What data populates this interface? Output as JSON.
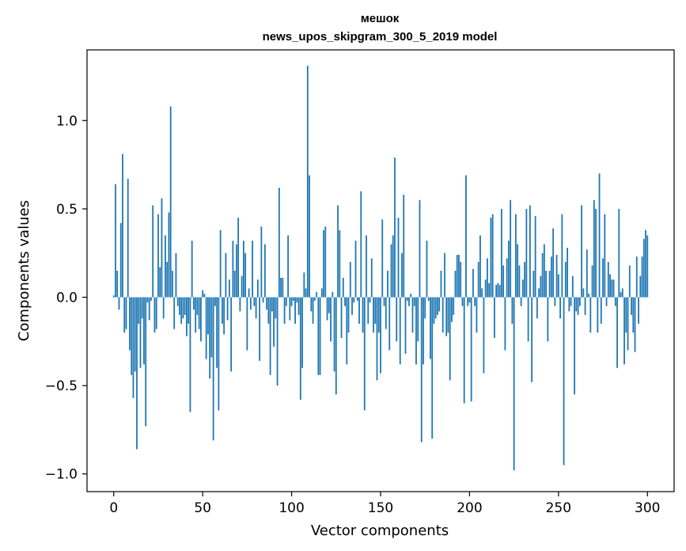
{
  "chart_data": {
    "type": "bar",
    "title": "мешок",
    "subtitle": "news_upos_skipgram_300_5_2019 model",
    "xlabel": "Vector components",
    "ylabel": "Components values",
    "xlim": [
      -15,
      315
    ],
    "ylim": [
      -1.1,
      1.4
    ],
    "xticks": [
      0,
      50,
      100,
      150,
      200,
      250,
      300
    ],
    "xtick_labels": [
      "0",
      "50",
      "100",
      "150",
      "200",
      "250",
      "300"
    ],
    "yticks": [
      -1.0,
      -0.5,
      0.0,
      0.5,
      1.0
    ],
    "ytick_labels": [
      "−1.0",
      "−0.5",
      "0.0",
      "0.5",
      "1.0"
    ],
    "bar_color": "#1f77b4",
    "grid": false,
    "values": [
      0.01,
      0.64,
      0.15,
      -0.07,
      0.42,
      0.81,
      -0.2,
      -0.18,
      0.67,
      -0.3,
      -0.44,
      -0.57,
      -0.42,
      -0.86,
      -0.15,
      -0.4,
      -0.12,
      -0.38,
      -0.73,
      -0.03,
      -0.13,
      -0.02,
      0.52,
      -0.2,
      -0.18,
      0.47,
      0.17,
      0.56,
      -0.12,
      0.35,
      0.2,
      0.48,
      1.08,
      0.15,
      -0.18,
      0.25,
      -0.05,
      -0.1,
      -0.15,
      -0.12,
      -0.1,
      -0.22,
      -0.15,
      -0.65,
      0.32,
      -0.07,
      -0.2,
      -0.1,
      -0.18,
      -0.25,
      0.04,
      0.02,
      -0.35,
      -0.21,
      -0.46,
      -0.34,
      -0.81,
      -0.05,
      -0.4,
      -0.64,
      0.38,
      -0.15,
      -0.21,
      0.25,
      -0.13,
      0.1,
      -0.42,
      0.32,
      0.15,
      0.3,
      0.45,
      -0.08,
      0.12,
      0.32,
      0.25,
      -0.3,
      0.05,
      -0.07,
      0.32,
      -0.05,
      -0.12,
      0.1,
      -0.36,
      0.4,
      -0.03,
      0.3,
      -0.07,
      -0.15,
      -0.44,
      -0.08,
      -0.28,
      -0.12,
      -0.5,
      0.62,
      0.11,
      0.11,
      -0.15,
      -0.05,
      0.35,
      -0.13,
      -0.05,
      -0.02,
      -0.15,
      -0.03,
      -0.1,
      -0.58,
      -0.4,
      0.14,
      0.05,
      1.31,
      0.69,
      -0.08,
      -0.15,
      -0.02,
      0.03,
      -0.44,
      -0.44,
      0.05,
      0.38,
      0.4,
      -0.13,
      -0.09,
      -0.25,
      0.03,
      -0.42,
      -0.55,
      0.52,
      0.38,
      -0.23,
      0.11,
      -0.05,
      -0.38,
      -0.2,
      0.2,
      -0.1,
      -0.03,
      0.32,
      -0.02,
      -0.15,
      0.6,
      -0.2,
      -0.64,
      0.35,
      -0.15,
      -0.03,
      0.22,
      -0.2,
      -0.15,
      -0.47,
      -0.2,
      -0.43,
      0.44,
      -0.05,
      -0.18,
      0.15,
      -0.3,
      0.3,
      0.35,
      0.79,
      -0.25,
      0.45,
      -0.38,
      0.25,
      0.58,
      -0.32,
      -0.02,
      -0.05,
      0.02,
      -0.2,
      -0.05,
      -0.38,
      -0.25,
      0.55,
      -0.82,
      -0.38,
      -0.12,
      0.32,
      -0.02,
      -0.35,
      -0.8,
      -0.15,
      -0.12,
      -0.1,
      -0.08,
      0.15,
      -0.2,
      0.25,
      -0.22,
      -0.2,
      -0.47,
      -0.14,
      -0.1,
      0.15,
      0.24,
      0.24,
      0.2,
      -0.05,
      -0.6,
      0.69,
      -0.05,
      -0.03,
      -0.59,
      0.16,
      -0.05,
      -0.2,
      0.2,
      0.35,
      0.05,
      -0.43,
      0.1,
      0.22,
      0.08,
      0.45,
      0.47,
      -0.23,
      0.07,
      0.08,
      0.07,
      0.5,
      0.18,
      -0.3,
      0.22,
      0.32,
      0.55,
      -0.15,
      -0.98,
      0.47,
      0.3,
      0.18,
      -0.05,
      0.1,
      0.2,
      0.5,
      -0.25,
      0.52,
      -0.48,
      0.15,
      0.46,
      -0.12,
      0.05,
      0.12,
      0.25,
      0.3,
      0.15,
      -0.25,
      0.15,
      0.23,
      0.39,
      -0.05,
      0.24,
      0.13,
      -0.12,
      0.47,
      -0.95,
      0.2,
      0.28,
      -0.08,
      -0.05,
      0.12,
      -0.55,
      -0.08,
      -0.1,
      -0.05,
      0.52,
      0.05,
      -0.1,
      0.27,
      0.02,
      -0.2,
      0.18,
      0.55,
      0.5,
      -0.2,
      0.7,
      -0.15,
      0.22,
      0.47,
      -0.05,
      0.2,
      0.13,
      0.1,
      0.1,
      -0.05,
      -0.4,
      0.5,
      0.03,
      0.05,
      -0.38,
      -0.2,
      -0.3,
      0.18,
      -0.1,
      -0.2,
      -0.31,
      0.23,
      -0.15,
      0.12,
      0.23,
      0.33,
      0.38,
      0.35
    ]
  }
}
